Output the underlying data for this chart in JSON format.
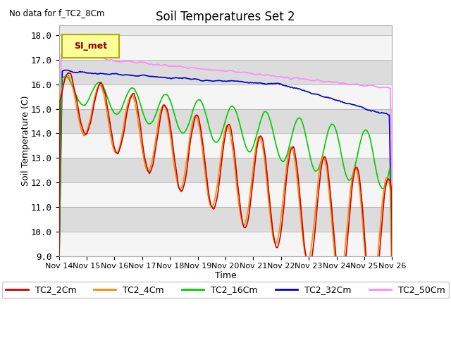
{
  "title": "Soil Temperatures Set 2",
  "top_left_text": "No data for f_TC2_8Cm",
  "xlabel": "Time",
  "ylabel": "Soil Temperature (C)",
  "ylim": [
    9.0,
    18.4
  ],
  "yticks": [
    9.0,
    10.0,
    11.0,
    12.0,
    13.0,
    14.0,
    15.0,
    16.0,
    17.0,
    18.0
  ],
  "legend_label": "SI_met",
  "colors": {
    "TC2_2Cm": "#cc0000",
    "TC2_4Cm": "#ff8800",
    "TC2_16Cm": "#00cc00",
    "TC2_32Cm": "#0000cc",
    "TC2_50Cm": "#ff88ff"
  },
  "xtick_labels": [
    "Nov 14",
    "Nov 15",
    "Nov 16",
    "Nov 17",
    "Nov 18",
    "Nov 19",
    "Nov 20",
    "Nov 21",
    "Nov 22",
    "Nov 23",
    "Nov 24",
    "Nov 25",
    "Nov 26"
  ],
  "n_points": 600,
  "fig_width": 6.4,
  "fig_height": 4.8,
  "dpi": 100
}
